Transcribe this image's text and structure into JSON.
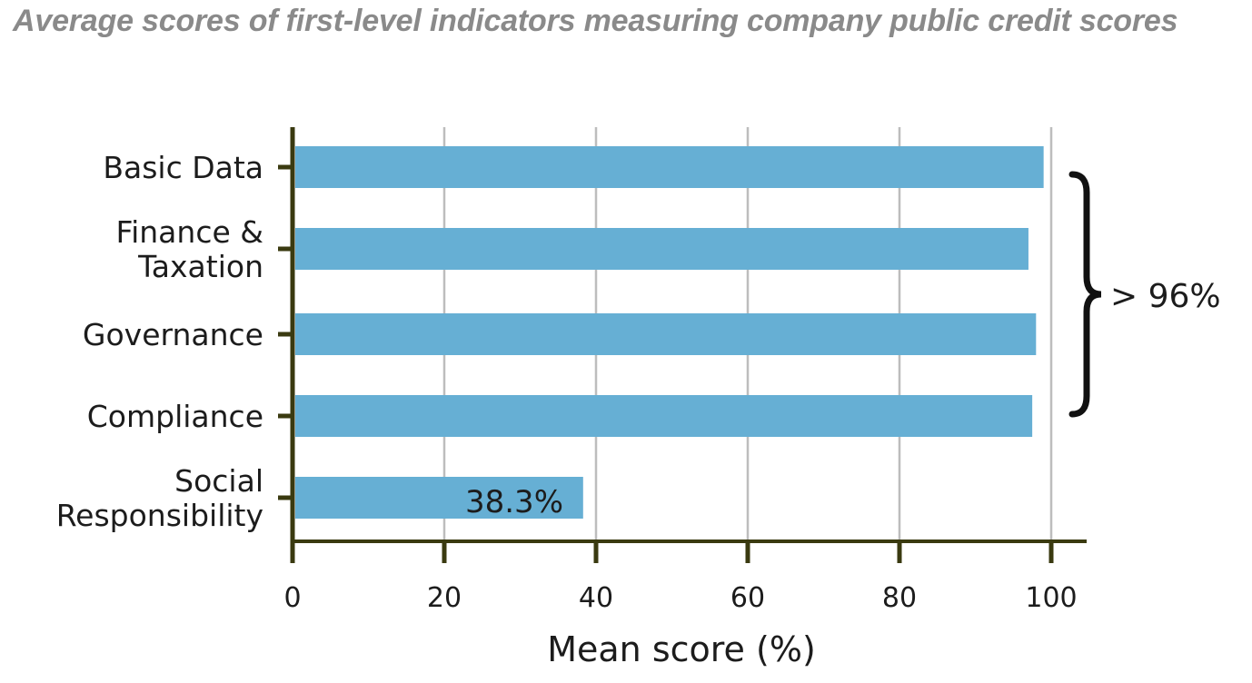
{
  "chart_data": {
    "type": "bar",
    "orientation": "horizontal",
    "title": "Average scores of first-level indicators measuring company public credit scores",
    "xlabel": "Mean score (%)",
    "ylabel": "",
    "xlim": [
      0,
      100
    ],
    "xticks": [
      0,
      20,
      40,
      60,
      80,
      100
    ],
    "grid": "vertical",
    "bar_color": "#66afd4",
    "axis_color": "#3a3a10",
    "categories": [
      {
        "label_lines": [
          "Basic Data"
        ],
        "value": 99
      },
      {
        "label_lines": [
          "Finance &",
          "Taxation"
        ],
        "value": 97
      },
      {
        "label_lines": [
          "Governance"
        ],
        "value": 98
      },
      {
        "label_lines": [
          "Compliance"
        ],
        "value": 97.5
      },
      {
        "label_lines": [
          "Social",
          "Responsibility"
        ],
        "value": 38.3
      }
    ],
    "annotations": {
      "data_label": "38.3%",
      "brace_label": "> 96%"
    }
  }
}
